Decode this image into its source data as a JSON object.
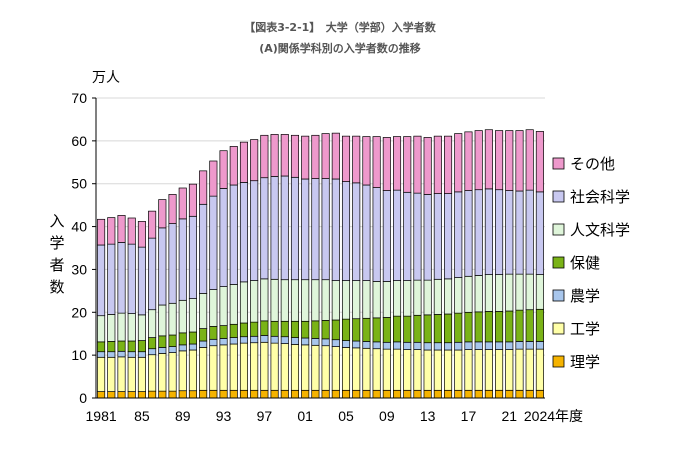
{
  "chart_data": {
    "type": "bar",
    "stacked": true,
    "title": "【図表3-2-1】　大学（学部）入学者数",
    "subtitle": "(A)関係学科別の入学者数の推移",
    "unit_label": "万人",
    "ylabel_chars": [
      "入",
      "学",
      "者",
      "数"
    ],
    "xlabel_suffix": "年度",
    "ylim": [
      0,
      70
    ],
    "yticks": [
      0,
      10,
      20,
      30,
      40,
      50,
      60,
      70
    ],
    "x_tick_labels": [
      {
        "index": 0,
        "label": "1981"
      },
      {
        "index": 4,
        "label": "85"
      },
      {
        "index": 8,
        "label": "89"
      },
      {
        "index": 12,
        "label": "93"
      },
      {
        "index": 16,
        "label": "97"
      },
      {
        "index": 20,
        "label": "01"
      },
      {
        "index": 24,
        "label": "05"
      },
      {
        "index": 28,
        "label": "09"
      },
      {
        "index": 32,
        "label": "13"
      },
      {
        "index": 36,
        "label": "17"
      },
      {
        "index": 40,
        "label": "21"
      },
      {
        "index": 43,
        "label": "2024年度"
      }
    ],
    "categories": [
      "1981",
      "1982",
      "1983",
      "1984",
      "1985",
      "1986",
      "1987",
      "1988",
      "1989",
      "1990",
      "1991",
      "1992",
      "1993",
      "1994",
      "1995",
      "1996",
      "1997",
      "1998",
      "1999",
      "2000",
      "2001",
      "2002",
      "2003",
      "2004",
      "2005",
      "2006",
      "2007",
      "2008",
      "2009",
      "2010",
      "2011",
      "2012",
      "2013",
      "2014",
      "2015",
      "2016",
      "2017",
      "2018",
      "2019",
      "2020",
      "2021",
      "2022",
      "2023",
      "2024"
    ],
    "legend_position": "right",
    "series": [
      {
        "name": "理学",
        "color": "#f5b300",
        "values": [
          1.5,
          1.5,
          1.5,
          1.5,
          1.5,
          1.6,
          1.6,
          1.6,
          1.7,
          1.7,
          1.8,
          1.8,
          1.8,
          1.8,
          1.8,
          1.8,
          1.8,
          1.8,
          1.8,
          1.8,
          1.8,
          1.8,
          1.8,
          1.8,
          1.8,
          1.8,
          1.8,
          1.8,
          1.8,
          1.8,
          1.8,
          1.8,
          1.8,
          1.8,
          1.8,
          1.8,
          1.8,
          1.8,
          1.8,
          1.8,
          1.8,
          1.8,
          1.8,
          1.8
        ]
      },
      {
        "name": "工学",
        "color": "#ffffa8",
        "values": [
          8.0,
          8.0,
          8.1,
          8.0,
          8.0,
          8.5,
          8.8,
          9.0,
          9.3,
          9.5,
          10.0,
          10.4,
          10.6,
          10.8,
          11.0,
          11.1,
          11.2,
          11.0,
          10.9,
          10.7,
          10.6,
          10.5,
          10.4,
          10.2,
          10.0,
          9.9,
          9.8,
          9.7,
          9.6,
          9.6,
          9.5,
          9.5,
          9.4,
          9.4,
          9.4,
          9.4,
          9.5,
          9.5,
          9.5,
          9.5,
          9.5,
          9.6,
          9.6,
          9.6
        ]
      },
      {
        "name": "農学",
        "color": "#a8c6ec",
        "values": [
          1.3,
          1.3,
          1.3,
          1.3,
          1.3,
          1.4,
          1.4,
          1.4,
          1.4,
          1.4,
          1.5,
          1.5,
          1.5,
          1.5,
          1.5,
          1.5,
          1.6,
          1.6,
          1.6,
          1.6,
          1.6,
          1.6,
          1.6,
          1.6,
          1.6,
          1.6,
          1.6,
          1.6,
          1.6,
          1.7,
          1.7,
          1.7,
          1.7,
          1.7,
          1.7,
          1.8,
          1.8,
          1.8,
          1.8,
          1.8,
          1.8,
          1.8,
          1.8,
          1.8
        ]
      },
      {
        "name": "保健",
        "color": "#7ab317",
        "values": [
          2.3,
          2.4,
          2.4,
          2.5,
          2.6,
          2.6,
          2.7,
          2.7,
          2.8,
          2.8,
          2.9,
          3.0,
          3.0,
          3.1,
          3.2,
          3.3,
          3.4,
          3.5,
          3.6,
          3.8,
          3.9,
          4.1,
          4.3,
          4.6,
          5.0,
          5.2,
          5.4,
          5.6,
          5.8,
          6.0,
          6.1,
          6.3,
          6.5,
          6.6,
          6.7,
          6.8,
          6.9,
          7.0,
          7.1,
          7.1,
          7.2,
          7.3,
          7.4,
          7.5
        ]
      },
      {
        "name": "人文科学",
        "color": "#dff5da",
        "values": [
          6.1,
          6.3,
          6.5,
          6.4,
          6.0,
          6.5,
          7.2,
          7.4,
          7.6,
          7.8,
          8.2,
          8.6,
          9.1,
          9.3,
          9.6,
          9.7,
          9.8,
          9.8,
          9.7,
          9.7,
          9.7,
          9.6,
          9.5,
          9.2,
          9.0,
          8.9,
          8.8,
          8.5,
          8.4,
          8.3,
          8.3,
          8.2,
          8.1,
          8.2,
          8.2,
          8.3,
          8.4,
          8.5,
          8.6,
          8.6,
          8.6,
          8.4,
          8.3,
          8.1
        ]
      },
      {
        "name": "社会科学",
        "color": "#c8c8f0",
        "values": [
          16.5,
          16.4,
          16.5,
          16.2,
          15.8,
          16.7,
          18.0,
          18.6,
          19.0,
          19.2,
          20.8,
          21.8,
          22.9,
          23.2,
          23.2,
          23.3,
          23.6,
          24.0,
          24.2,
          23.9,
          23.5,
          23.6,
          23.6,
          23.7,
          23.1,
          22.8,
          22.3,
          21.9,
          21.2,
          21.1,
          20.6,
          20.3,
          20.0,
          20.0,
          19.9,
          20.0,
          20.0,
          20.0,
          20.0,
          19.8,
          19.5,
          19.4,
          19.6,
          19.3
        ]
      },
      {
        "name": "その他",
        "color": "#ee99cc",
        "values": [
          6.0,
          6.2,
          6.3,
          6.1,
          6.0,
          6.3,
          6.6,
          6.8,
          7.2,
          7.5,
          7.8,
          8.2,
          8.8,
          9.0,
          9.4,
          9.6,
          9.9,
          9.8,
          9.7,
          9.8,
          10.0,
          10.1,
          10.5,
          10.7,
          10.6,
          10.9,
          11.3,
          11.9,
          12.4,
          12.5,
          13.0,
          13.3,
          13.3,
          13.4,
          13.4,
          13.6,
          13.7,
          13.8,
          13.8,
          13.8,
          14.0,
          14.1,
          14.1,
          14.1
        ]
      }
    ]
  }
}
